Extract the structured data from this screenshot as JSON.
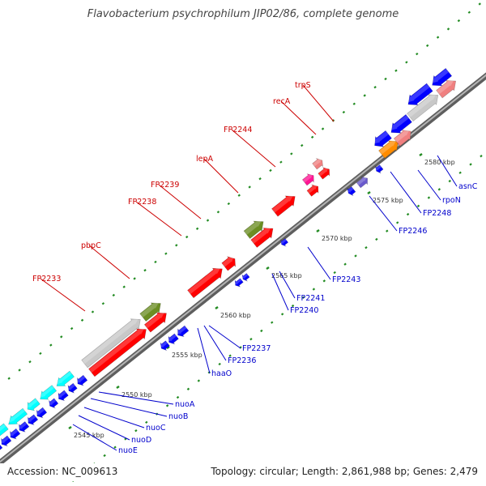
{
  "title": "Flavobacterium psychrophilum JIP02/86, complete genome",
  "footer": {
    "accession": "Accession: NC_009613",
    "summary": "Topology: circular; Length: 2,861,988 bp; Genes: 2,479"
  },
  "colors": {
    "backbone": "#808080",
    "tick_mark": "#228b22",
    "label_fwd": "#cc0000",
    "label_rev": "#0000cc",
    "gene_red": "#ff0000",
    "gene_olive": "#6b8e23",
    "gene_gray": "#c8c8c8",
    "gene_cyan": "#00ffff",
    "gene_blue": "#0000ff",
    "gene_pink": "#f08080",
    "gene_magenta": "#ff1493",
    "gene_orange": "#ff8c00",
    "gene_slate": "#6a5acd"
  },
  "ticks": [
    {
      "label": "2545 kbp"
    },
    {
      "label": "2550 kbp"
    },
    {
      "label": "2555 kbp"
    },
    {
      "label": "2560 kbp"
    },
    {
      "label": "2565 kbp"
    },
    {
      "label": "2570 kbp"
    },
    {
      "label": "2575 kbp"
    },
    {
      "label": "2580 kbp"
    }
  ],
  "labels_forward": [
    {
      "name": "FP2233"
    },
    {
      "name": "pbpC"
    },
    {
      "name": "FP2238"
    },
    {
      "name": "FP2239"
    },
    {
      "name": "lepA"
    },
    {
      "name": "FP2244"
    },
    {
      "name": "recA"
    },
    {
      "name": "trpS"
    }
  ],
  "labels_reverse": [
    {
      "name": "nuoA"
    },
    {
      "name": "nuoB"
    },
    {
      "name": "nuoC"
    },
    {
      "name": "nuoD"
    },
    {
      "name": "nuoE"
    },
    {
      "name": "haaO"
    },
    {
      "name": "FP2236"
    },
    {
      "name": "FP2237"
    },
    {
      "name": "FP2240"
    },
    {
      "name": "FP2241"
    },
    {
      "name": "FP2243"
    },
    {
      "name": "FP2246"
    },
    {
      "name": "FP2248"
    },
    {
      "name": "rpoN"
    },
    {
      "name": "asnC"
    }
  ]
}
